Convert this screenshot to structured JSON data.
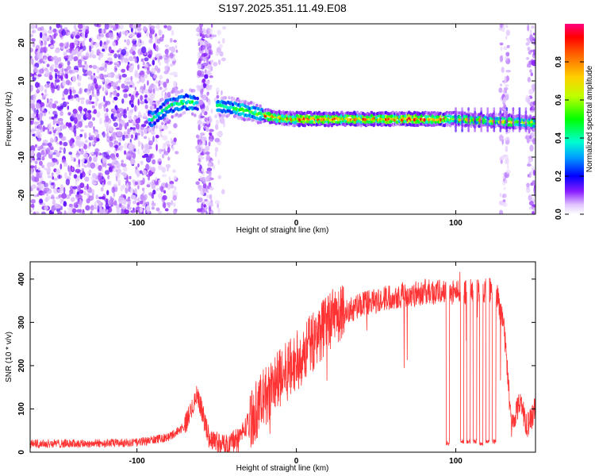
{
  "figure_title": "S197.2025.351.11.49.E08",
  "chart_data": [
    {
      "type": "heatmap",
      "title": "S197.2025.351.11.49.E08",
      "xlabel": "Height of straight line (km)",
      "ylabel": "Frequency (Hz)",
      "xlim": [
        -167,
        150
      ],
      "ylim": [
        -25,
        25
      ],
      "xticks": [
        -100,
        0,
        100
      ],
      "yticks": [
        -20,
        -10,
        0,
        10,
        20
      ],
      "colorbar": {
        "label": "Normalized spectral amplitude",
        "range": [
          0.0,
          1.0
        ],
        "ticks": [
          0.0,
          0.2,
          0.4,
          0.6,
          0.8
        ],
        "colormap": [
          "#ffffff",
          "#d9b3ff",
          "#7a00ff",
          "#0000ff",
          "#00b3ff",
          "#00ffcc",
          "#00ff00",
          "#ccff00",
          "#ffd000",
          "#ff6a00",
          "#ff0000",
          "#ff007a"
        ]
      },
      "ridge": [
        {
          "x": -90,
          "y": 0.0
        },
        {
          "x": -80,
          "y": 3.5
        },
        {
          "x": -70,
          "y": 4.5
        },
        {
          "x": -50,
          "y": 3.5
        },
        {
          "x": -40,
          "y": 3.0
        },
        {
          "x": -30,
          "y": 2.0
        },
        {
          "x": -20,
          "y": 1.0
        },
        {
          "x": -10,
          "y": 0.2
        },
        {
          "x": 0,
          "y": 0.0
        },
        {
          "x": 50,
          "y": 0.0
        },
        {
          "x": 100,
          "y": 0.0
        },
        {
          "x": 150,
          "y": -1.0
        }
      ]
    },
    {
      "type": "line",
      "xlabel": "Height of straight line (km)",
      "ylabel": "SNR (10 * v/v)",
      "xlim": [
        -167,
        150
      ],
      "ylim": [
        0,
        440
      ],
      "xticks": [
        -100,
        0,
        100
      ],
      "yticks": [
        0,
        100,
        200,
        300,
        400
      ],
      "color": "#ff3333",
      "envelope": [
        {
          "x": -167,
          "y": 20
        },
        {
          "x": -130,
          "y": 20
        },
        {
          "x": -100,
          "y": 22
        },
        {
          "x": -80,
          "y": 35
        },
        {
          "x": -70,
          "y": 60
        },
        {
          "x": -62,
          "y": 135
        },
        {
          "x": -55,
          "y": 35
        },
        {
          "x": -45,
          "y": 15
        },
        {
          "x": -35,
          "y": 40
        },
        {
          "x": -25,
          "y": 100
        },
        {
          "x": -15,
          "y": 150
        },
        {
          "x": -5,
          "y": 190
        },
        {
          "x": 5,
          "y": 230
        },
        {
          "x": 15,
          "y": 280
        },
        {
          "x": 25,
          "y": 315
        },
        {
          "x": 40,
          "y": 340
        },
        {
          "x": 60,
          "y": 360
        },
        {
          "x": 80,
          "y": 370
        },
        {
          "x": 95,
          "y": 370
        },
        {
          "x": 110,
          "y": 370
        },
        {
          "x": 125,
          "y": 375
        },
        {
          "x": 130,
          "y": 300
        },
        {
          "x": 135,
          "y": 60
        },
        {
          "x": 140,
          "y": 120
        },
        {
          "x": 145,
          "y": 60
        },
        {
          "x": 150,
          "y": 100
        }
      ],
      "dropouts": [
        {
          "x": 95,
          "y": 15
        },
        {
          "x": 104,
          "y": 20
        },
        {
          "x": 108,
          "y": 20
        },
        {
          "x": 112,
          "y": 20
        },
        {
          "x": 116,
          "y": 15
        },
        {
          "x": 120,
          "y": 20
        },
        {
          "x": 124,
          "y": 20
        }
      ]
    }
  ]
}
